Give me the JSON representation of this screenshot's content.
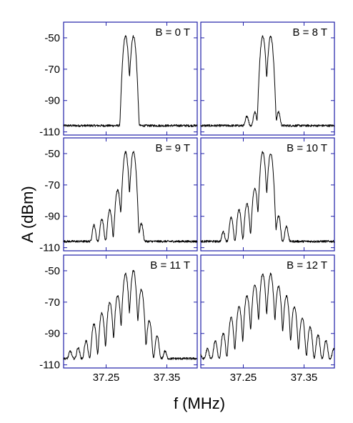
{
  "chart_data": {
    "type": "line",
    "xlabel": "f (MHz)",
    "ylabel": "A (dBm)",
    "xlim": [
      37.18,
      37.4
    ],
    "ylim": [
      -112,
      -40
    ],
    "yticks": [
      -50,
      -70,
      -90,
      -110
    ],
    "xticks": [
      37.25,
      37.35
    ],
    "ytick_labels": [
      "-50",
      "-70",
      "-90",
      "-110"
    ],
    "xtick_labels": [
      "37.25",
      "37.35"
    ],
    "axis_color": "#1f1fa8",
    "line_color": "#000000",
    "noise_floor": -106,
    "panels": [
      {
        "label": "B = 0 T",
        "peaks": [
          [
            37.282,
            -49
          ],
          [
            37.295,
            -49
          ]
        ]
      },
      {
        "label": "B = 8 T",
        "peaks": [
          [
            37.256,
            -101
          ],
          [
            37.269,
            -98
          ],
          [
            37.282,
            -49
          ],
          [
            37.295,
            -49
          ],
          [
            37.308,
            -98
          ]
        ]
      },
      {
        "label": "B = 9 T",
        "peaks": [
          [
            37.23,
            -96
          ],
          [
            37.243,
            -92
          ],
          [
            37.256,
            -86
          ],
          [
            37.269,
            -73
          ],
          [
            37.282,
            -49
          ],
          [
            37.295,
            -49
          ],
          [
            37.308,
            -95
          ]
        ]
      },
      {
        "label": "B = 10 T",
        "peaks": [
          [
            37.217,
            -101
          ],
          [
            37.23,
            -91
          ],
          [
            37.243,
            -86
          ],
          [
            37.256,
            -82
          ],
          [
            37.269,
            -72
          ],
          [
            37.282,
            -49
          ],
          [
            37.295,
            -50
          ],
          [
            37.308,
            -90
          ],
          [
            37.321,
            -97
          ]
        ]
      },
      {
        "label": "B = 11 T",
        "peaks": [
          [
            37.191,
            -103
          ],
          [
            37.204,
            -100
          ],
          [
            37.217,
            -95
          ],
          [
            37.23,
            -84
          ],
          [
            37.243,
            -77
          ],
          [
            37.256,
            -70
          ],
          [
            37.269,
            -66
          ],
          [
            37.282,
            -52
          ],
          [
            37.295,
            -50
          ],
          [
            37.308,
            -62
          ],
          [
            37.321,
            -82
          ],
          [
            37.334,
            -92
          ],
          [
            37.347,
            -103
          ]
        ]
      },
      {
        "label": "B = 12 T",
        "peaks": [
          [
            37.178,
            -104
          ],
          [
            37.191,
            -101
          ],
          [
            37.204,
            -95
          ],
          [
            37.217,
            -90
          ],
          [
            37.23,
            -80
          ],
          [
            37.243,
            -73
          ],
          [
            37.256,
            -66
          ],
          [
            37.269,
            -59
          ],
          [
            37.282,
            -52
          ],
          [
            37.295,
            -52
          ],
          [
            37.308,
            -60
          ],
          [
            37.321,
            -66
          ],
          [
            37.334,
            -73
          ],
          [
            37.347,
            -80
          ],
          [
            37.36,
            -86
          ],
          [
            37.373,
            -91
          ],
          [
            37.386,
            -95
          ],
          [
            37.399,
            -101
          ]
        ]
      }
    ]
  }
}
